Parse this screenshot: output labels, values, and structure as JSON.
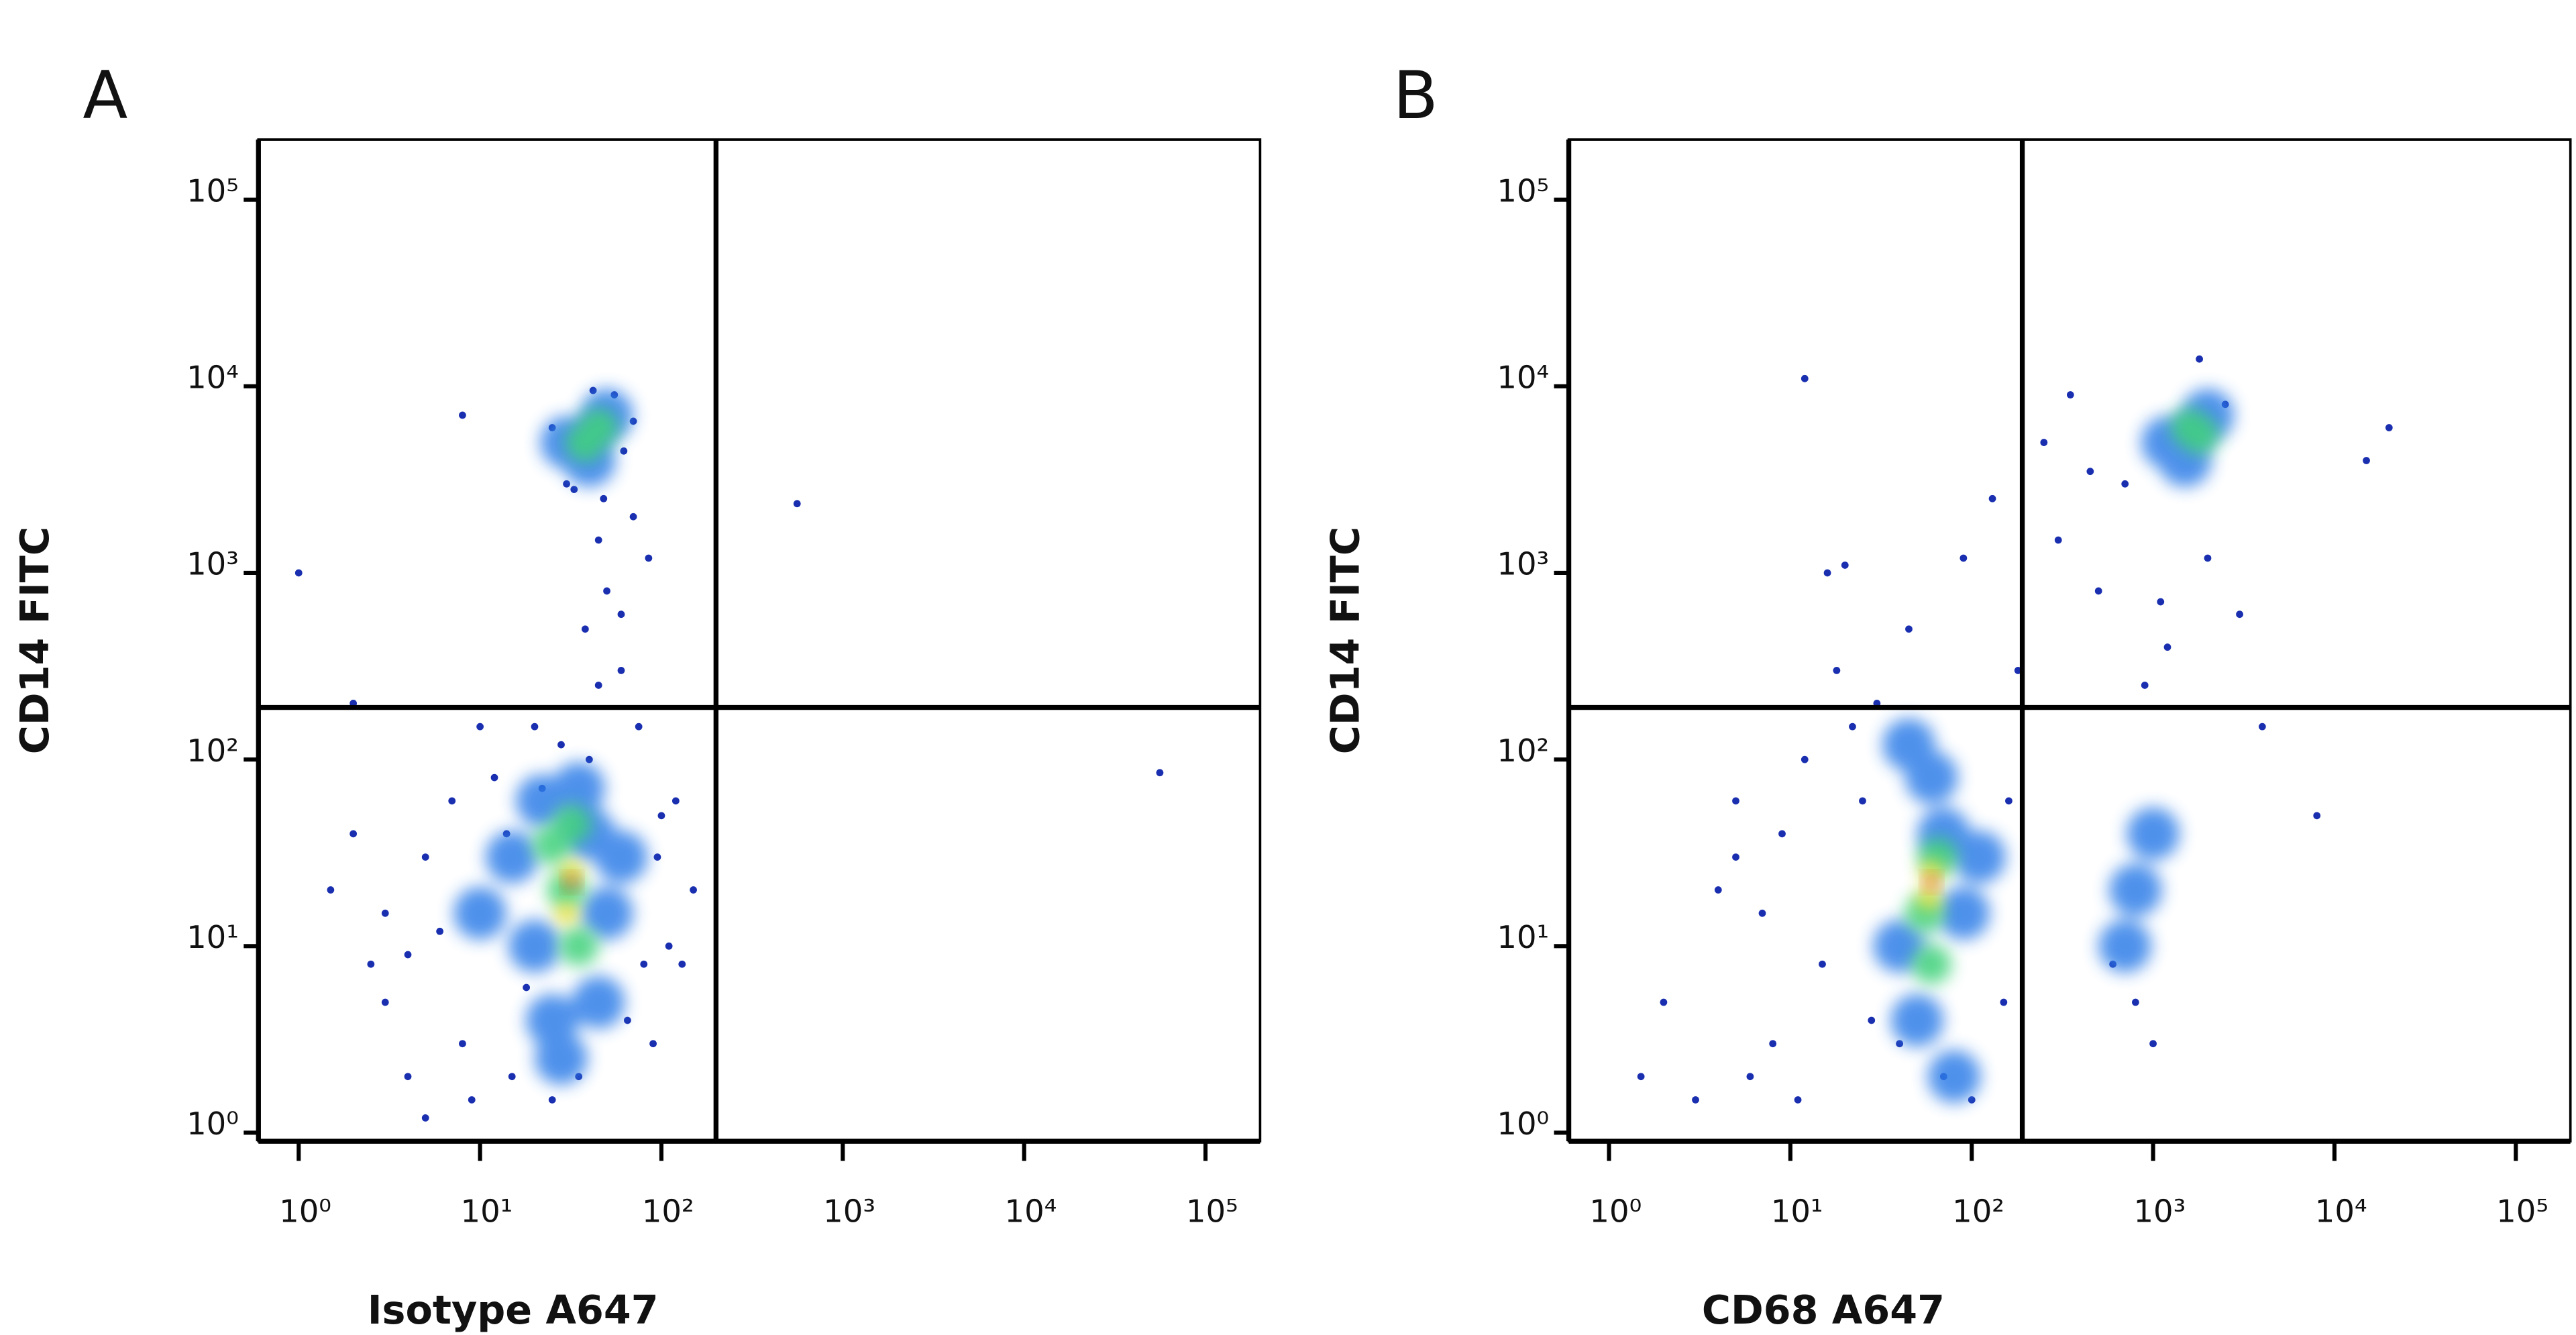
{
  "chart_data": [
    {
      "type": "scatter",
      "title": "A",
      "x_label": "Isotype A647",
      "y_label": "CD14 FITC",
      "log_x": true,
      "log_y": true,
      "xlim": [
        0.6,
        200000
      ],
      "ylim": [
        0.9,
        210000
      ],
      "xticks": [
        {
          "value": 1,
          "label": "10⁰"
        },
        {
          "value": 10,
          "label": "10¹"
        },
        {
          "value": 100,
          "label": "10²"
        },
        {
          "value": 1000,
          "label": "10³"
        },
        {
          "value": 10000,
          "label": "10⁴"
        },
        {
          "value": 100000,
          "label": "10⁵"
        }
      ],
      "yticks": [
        {
          "value": 1,
          "label": "10⁰"
        },
        {
          "value": 10,
          "label": "10¹"
        },
        {
          "value": 100,
          "label": "10²"
        },
        {
          "value": 1000,
          "label": "10³"
        },
        {
          "value": 10000,
          "label": "10⁴"
        },
        {
          "value": 100000,
          "label": "10⁵"
        }
      ],
      "gates": {
        "x": 200,
        "y": 190
      },
      "series": [
        {
          "color": "#1a2fb0",
          "x": [
            3,
            5,
            8,
            12,
            6,
            15,
            20,
            40,
            60,
            50,
            45,
            80,
            100,
            90,
            2,
            4,
            10,
            25,
            70,
            30,
            55,
            25,
            8,
            120,
            150,
            1,
            2,
            560,
            56000,
            3,
            7,
            18,
            35,
            65,
            110,
            1.5,
            2.5,
            9,
            14,
            28,
            45,
            75,
            95,
            130,
            5,
            4,
            22,
            38,
            60,
            85,
            48,
            33,
            62,
            42,
            70
          ],
          "values": [
            5,
            30,
            3,
            80,
            12,
            2,
            150,
            100,
            300,
            800,
            1500,
            8,
            50,
            3,
            40,
            2,
            150,
            1.5,
            2000,
            3000,
            9000,
            6000,
            7000,
            60,
            20,
            1000,
            200,
            2350,
            85,
            15,
            60,
            6,
            2,
            4,
            10,
            20,
            8,
            1.5,
            40,
            120,
            250,
            150,
            30,
            8,
            1.2,
            9,
            70,
            500,
            600,
            1200,
            2500,
            2800,
            4500,
            9500,
            6500
          ]
        },
        {
          "color": "#2f7ee8",
          "x": [
            20,
            40,
            15,
            50,
            25,
            35,
            10,
            30,
            50,
            40,
            60,
            22,
            45,
            28
          ],
          "values": [
            10,
            40,
            30,
            15,
            4,
            70,
            15,
            5000,
            7000,
            4000,
            30,
            60,
            5,
            2.5
          ]
        },
        {
          "color": "#3fd27a",
          "x": [
            30,
            35,
            25,
            38,
            45,
            32
          ],
          "values": [
            20,
            10,
            35,
            5000,
            6000,
            45
          ]
        },
        {
          "color": "#f2e030",
          "x": [
            32,
            30
          ],
          "values": [
            25,
            15
          ]
        },
        {
          "color": "#e8381c",
          "x": [
            32
          ],
          "values": [
            22
          ]
        }
      ]
    },
    {
      "type": "scatter",
      "title": "B",
      "x_label": "CD68 A647",
      "y_label": "CD14 FITC",
      "log_x": true,
      "log_y": true,
      "xlim": [
        0.6,
        200000
      ],
      "ylim": [
        0.9,
        210000
      ],
      "xticks": [
        {
          "value": 1,
          "label": "10⁰"
        },
        {
          "value": 10,
          "label": "10¹"
        },
        {
          "value": 100,
          "label": "10²"
        },
        {
          "value": 1000,
          "label": "10³"
        },
        {
          "value": 10000,
          "label": "10⁴"
        },
        {
          "value": 100000,
          "label": "10⁵"
        }
      ],
      "yticks": [
        {
          "value": 1,
          "label": "10⁰"
        },
        {
          "value": 10,
          "label": "10¹"
        },
        {
          "value": 100,
          "label": "10²"
        },
        {
          "value": 1000,
          "label": "10³"
        },
        {
          "value": 10000,
          "label": "10⁴"
        },
        {
          "value": 100000,
          "label": "10⁵"
        }
      ],
      "gates": {
        "x": 190,
        "y": 190
      },
      "series": [
        {
          "color": "#1a2fb0",
          "x": [
            2,
            4,
            6,
            9,
            12,
            18,
            25,
            30,
            15,
            8,
            5,
            3,
            20,
            40,
            100,
            150,
            180,
            300,
            500,
            700,
            900,
            1200,
            2000,
            3000,
            4000,
            600,
            800,
            1000,
            15000,
            20000,
            12,
            8000,
            16,
            1.5,
            7,
            11,
            22,
            45,
            90,
            130,
            250,
            350,
            450,
            1100,
            2500,
            1800,
            5,
            28,
            70,
            160
          ],
          "values": [
            5,
            20,
            2,
            40,
            100,
            300,
            60,
            200,
            8,
            3,
            60,
            1.5,
            1100,
            3,
            1.5,
            5,
            300,
            1500,
            800,
            3000,
            250,
            400,
            1200,
            600,
            150,
            8,
            5,
            3,
            4000,
            6000,
            11000,
            50,
            1000,
            2,
            15,
            1.5,
            150,
            500,
            1200,
            2500,
            5000,
            9000,
            3500,
            700,
            8000,
            14000,
            30,
            4,
            2,
            60
          ]
        },
        {
          "color": "#2f7ee8",
          "x": [
            40,
            70,
            50,
            90,
            60,
            80,
            1200,
            2000,
            1500,
            800,
            700,
            1000,
            45,
            110
          ],
          "values": [
            10,
            40,
            4,
            15,
            80,
            2,
            5000,
            7000,
            4000,
            20,
            10,
            40,
            120,
            30
          ]
        },
        {
          "color": "#3fd27a",
          "x": [
            55,
            65,
            60,
            1600,
            1800
          ],
          "values": [
            15,
            30,
            8,
            6000,
            5500
          ]
        },
        {
          "color": "#f2e030",
          "x": [
            60,
            58
          ],
          "values": [
            25,
            18
          ]
        },
        {
          "color": "#e8381c",
          "x": [
            60
          ],
          "values": [
            22
          ]
        }
      ]
    }
  ]
}
